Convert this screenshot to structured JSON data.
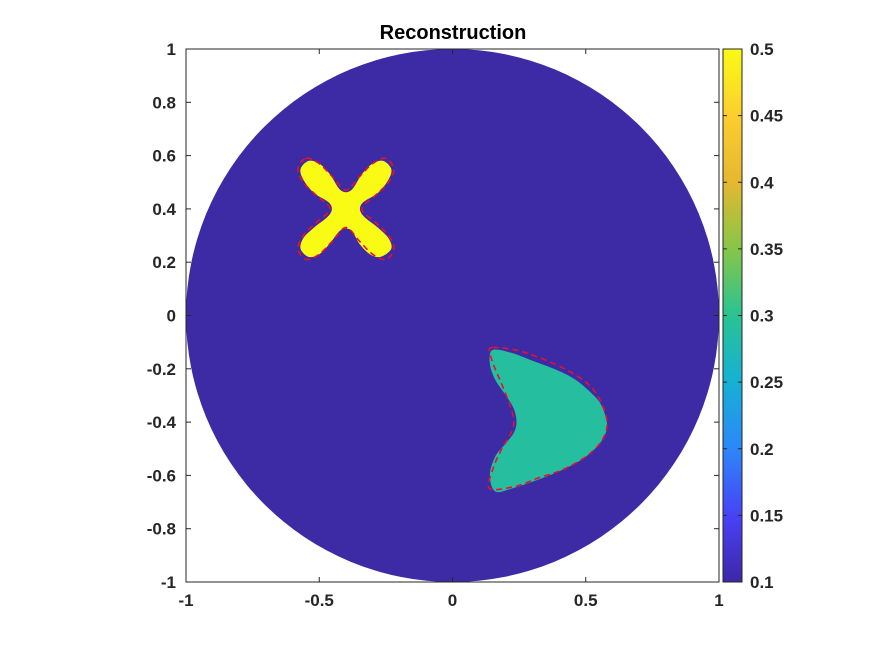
{
  "chart_data": {
    "type": "heatmap",
    "title": "Reconstruction",
    "xlabel": "",
    "ylabel": "",
    "xlim": [
      -1,
      1
    ],
    "ylim": [
      -1,
      1
    ],
    "x_ticks": [
      -1,
      -0.5,
      0,
      0.5,
      1
    ],
    "x_tick_labels": [
      "-1",
      "-0.5",
      "0",
      "0.5",
      "1"
    ],
    "y_ticks": [
      1,
      0.8,
      0.6,
      0.4,
      0.2,
      0,
      -0.2,
      -0.4,
      -0.6,
      -0.8,
      -1
    ],
    "y_tick_labels": [
      "1",
      "0.8",
      "0.6",
      "0.4",
      "0.2",
      "0",
      "-0.2",
      "-0.4",
      "-0.6",
      "-0.8",
      "-1"
    ],
    "grid": false,
    "domain": {
      "shape": "disk",
      "center": [
        0,
        0
      ],
      "radius": 1,
      "value": 0.1
    },
    "inclusions": [
      {
        "shape": "four-lobed star",
        "center": [
          -0.4,
          0.4
        ],
        "value": 0.5,
        "outline": [
          [
            -0.54,
            0.58
          ],
          [
            -0.5,
            0.57
          ],
          [
            -0.46,
            0.53
          ],
          [
            -0.42,
            0.47
          ],
          [
            -0.38,
            0.47
          ],
          [
            -0.34,
            0.53
          ],
          [
            -0.3,
            0.57
          ],
          [
            -0.26,
            0.58
          ],
          [
            -0.23,
            0.55
          ],
          [
            -0.24,
            0.51
          ],
          [
            -0.28,
            0.46
          ],
          [
            -0.34,
            0.42
          ],
          [
            -0.34,
            0.38
          ],
          [
            -0.28,
            0.33
          ],
          [
            -0.24,
            0.29
          ],
          [
            -0.23,
            0.25
          ],
          [
            -0.27,
            0.22
          ],
          [
            -0.31,
            0.23
          ],
          [
            -0.35,
            0.27
          ],
          [
            -0.38,
            0.32
          ],
          [
            -0.42,
            0.32
          ],
          [
            -0.46,
            0.27
          ],
          [
            -0.5,
            0.23
          ],
          [
            -0.54,
            0.22
          ],
          [
            -0.57,
            0.25
          ],
          [
            -0.56,
            0.29
          ],
          [
            -0.52,
            0.33
          ],
          [
            -0.46,
            0.38
          ],
          [
            -0.46,
            0.42
          ],
          [
            -0.52,
            0.46
          ],
          [
            -0.56,
            0.51
          ],
          [
            -0.57,
            0.55
          ]
        ],
        "true_boundary": [
          [
            -0.55,
            0.59
          ],
          [
            -0.5,
            0.57
          ],
          [
            -0.45,
            0.52
          ],
          [
            -0.4,
            0.47
          ],
          [
            -0.35,
            0.52
          ],
          [
            -0.3,
            0.57
          ],
          [
            -0.25,
            0.59
          ],
          [
            -0.22,
            0.55
          ],
          [
            -0.24,
            0.5
          ],
          [
            -0.29,
            0.45
          ],
          [
            -0.34,
            0.4
          ],
          [
            -0.29,
            0.35
          ],
          [
            -0.24,
            0.3
          ],
          [
            -0.22,
            0.25
          ],
          [
            -0.25,
            0.21
          ],
          [
            -0.3,
            0.23
          ],
          [
            -0.35,
            0.28
          ],
          [
            -0.4,
            0.33
          ],
          [
            -0.45,
            0.28
          ],
          [
            -0.5,
            0.23
          ],
          [
            -0.55,
            0.21
          ],
          [
            -0.58,
            0.25
          ],
          [
            -0.56,
            0.3
          ],
          [
            -0.51,
            0.35
          ],
          [
            -0.46,
            0.4
          ],
          [
            -0.51,
            0.45
          ],
          [
            -0.56,
            0.5
          ],
          [
            -0.58,
            0.55
          ]
        ]
      },
      {
        "shape": "kite",
        "center": [
          0.32,
          -0.4
        ],
        "value": 0.29,
        "outline": [
          [
            0.15,
            -0.13
          ],
          [
            0.22,
            -0.14
          ],
          [
            0.3,
            -0.17
          ],
          [
            0.38,
            -0.2
          ],
          [
            0.46,
            -0.24
          ],
          [
            0.53,
            -0.3
          ],
          [
            0.56,
            -0.34
          ],
          [
            0.58,
            -0.41
          ],
          [
            0.56,
            -0.47
          ],
          [
            0.5,
            -0.53
          ],
          [
            0.41,
            -0.58
          ],
          [
            0.31,
            -0.62
          ],
          [
            0.22,
            -0.65
          ],
          [
            0.16,
            -0.66
          ],
          [
            0.14,
            -0.6
          ],
          [
            0.16,
            -0.53
          ],
          [
            0.2,
            -0.48
          ],
          [
            0.23,
            -0.44
          ],
          [
            0.24,
            -0.4
          ],
          [
            0.23,
            -0.35
          ],
          [
            0.2,
            -0.3
          ],
          [
            0.16,
            -0.24
          ],
          [
            0.14,
            -0.18
          ]
        ],
        "true_boundary": [
          [
            0.15,
            -0.12
          ],
          [
            0.24,
            -0.13
          ],
          [
            0.33,
            -0.16
          ],
          [
            0.42,
            -0.2
          ],
          [
            0.5,
            -0.25
          ],
          [
            0.55,
            -0.31
          ],
          [
            0.58,
            -0.4
          ],
          [
            0.56,
            -0.47
          ],
          [
            0.5,
            -0.53
          ],
          [
            0.41,
            -0.58
          ],
          [
            0.32,
            -0.61
          ],
          [
            0.24,
            -0.64
          ],
          [
            0.14,
            -0.65
          ],
          [
            0.15,
            -0.58
          ],
          [
            0.18,
            -0.51
          ],
          [
            0.22,
            -0.44
          ],
          [
            0.23,
            -0.4
          ],
          [
            0.22,
            -0.35
          ],
          [
            0.19,
            -0.27
          ],
          [
            0.16,
            -0.2
          ],
          [
            0.14,
            -0.14
          ]
        ]
      }
    ],
    "boundary_style": {
      "color": "#e8102a",
      "dash": "dashed"
    },
    "colorbar": {
      "min": 0.1,
      "max": 0.5,
      "ticks": [
        0.5,
        0.45,
        0.4,
        0.35,
        0.3,
        0.25,
        0.2,
        0.15,
        0.1
      ],
      "tick_labels": [
        "0.5",
        "0.45",
        "0.4",
        "0.35",
        "0.3",
        "0.25",
        "0.2",
        "0.15",
        "0.1"
      ],
      "colormap": "parula",
      "colormap_stops": [
        "#3e26a8",
        "#4743f8",
        "#2c87f9",
        "#15b1d5",
        "#29c392",
        "#86c648",
        "#e6b730",
        "#fcce2e",
        "#f9fb15"
      ]
    },
    "colors": {
      "background_disk": "#3d2ba6",
      "axis": "#262626"
    }
  }
}
